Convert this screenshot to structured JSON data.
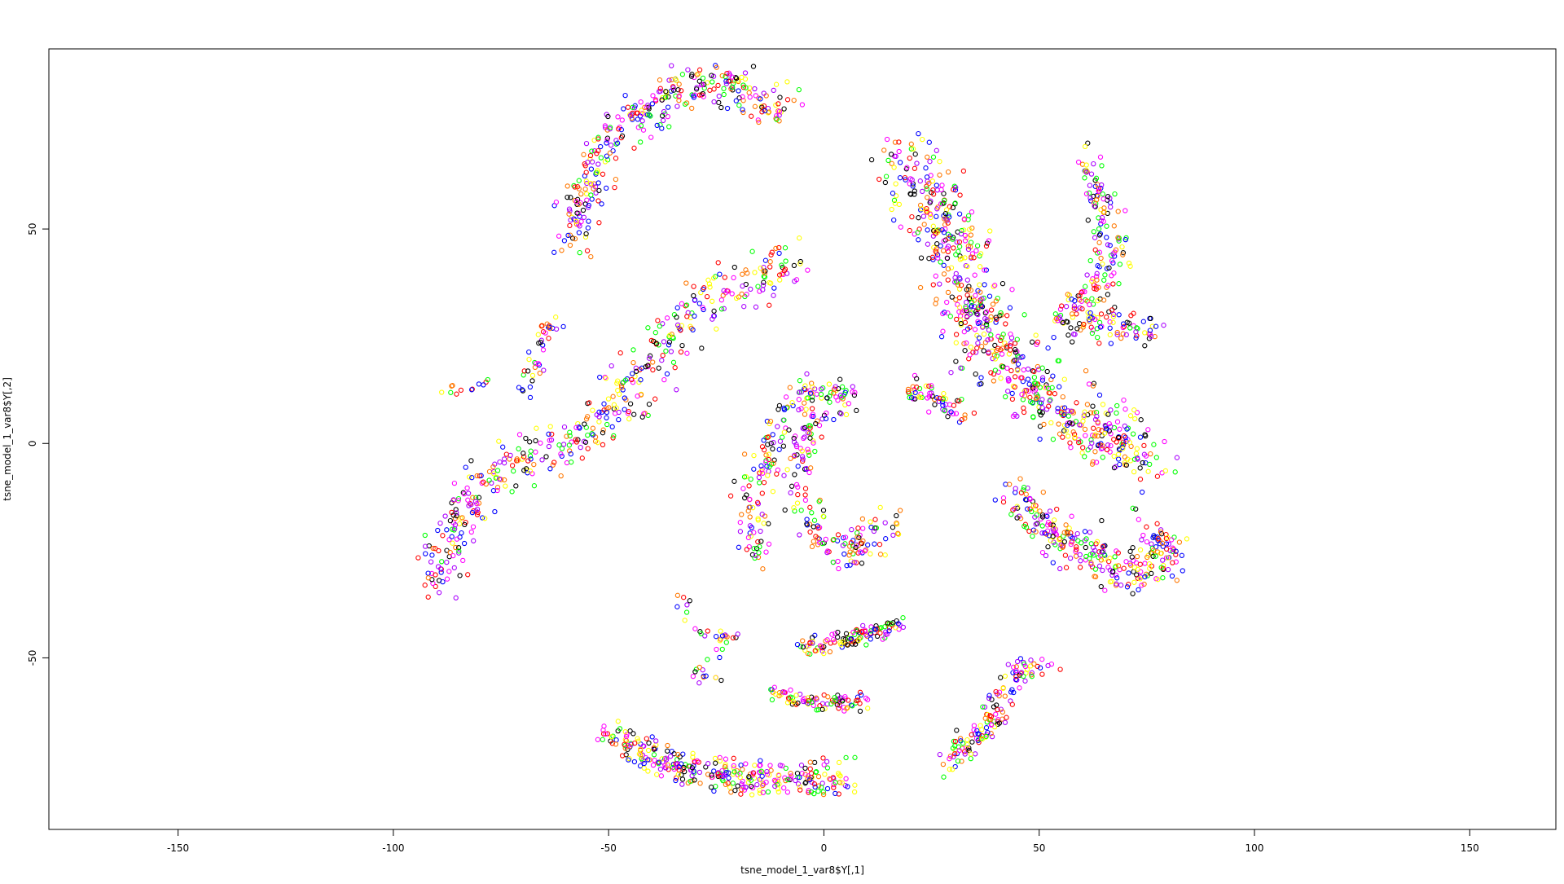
{
  "chart_data": {
    "type": "scatter",
    "title": "",
    "xlabel": "tsne_model_1_var8$Y[,1]",
    "ylabel": "tsne_model_1_var8$Y[,2]",
    "xlim": [
      -180,
      170
    ],
    "ylim": [
      -90,
      92
    ],
    "x_ticks": [
      -150,
      -100,
      -50,
      0,
      50,
      100,
      150
    ],
    "y_ticks": [
      -50,
      0,
      50
    ],
    "marker": "open-circle",
    "grid": false,
    "legend": "none",
    "colors": [
      "#ff0000",
      "#00ff00",
      "#0000ff",
      "#ff00ff",
      "#000000",
      "#ffff00",
      "#ff7700",
      "#aa00ff"
    ],
    "clusters": [
      {
        "center": [
          -40,
          70
        ],
        "path": [
          [
            -58,
            45
          ],
          [
            -57,
            56
          ],
          [
            -53,
            66
          ],
          [
            -46,
            74
          ],
          [
            -38,
            80
          ],
          [
            -29,
            84
          ],
          [
            -22,
            84
          ],
          [
            -15,
            78
          ],
          [
            -8,
            79
          ]
        ],
        "width": 7,
        "count": 330
      },
      {
        "center": [
          -50,
          10
        ],
        "path": [
          [
            -89,
            -33
          ],
          [
            -86,
            -18
          ],
          [
            -77,
            -8
          ],
          [
            -68,
            -3
          ],
          [
            -59,
            0
          ],
          [
            -51,
            5
          ],
          [
            -44,
            15
          ],
          [
            -38,
            22
          ],
          [
            -30,
            30
          ],
          [
            -20,
            37
          ],
          [
            -6,
            42
          ]
        ],
        "width": 9,
        "count": 450
      },
      {
        "center": [
          -66,
          20
        ],
        "path": [
          [
            -69,
            12
          ],
          [
            -66,
            20
          ],
          [
            -64,
            28
          ],
          [
            -61,
            26
          ]
        ],
        "width": 4,
        "count": 40
      },
      {
        "center": [
          -84,
          12
        ],
        "path": [
          [
            -88,
            12
          ],
          [
            -82,
            13
          ],
          [
            -78,
            15
          ]
        ],
        "width": 2,
        "count": 12
      },
      {
        "center": [
          6,
          -10
        ],
        "path": [
          [
            -16,
            -28
          ],
          [
            -17,
            -14
          ],
          [
            -13,
            0
          ],
          [
            -7,
            10
          ],
          [
            1,
            13
          ],
          [
            6,
            10
          ],
          [
            -4,
            4
          ],
          [
            -7,
            -10
          ],
          [
            0,
            -22
          ],
          [
            5,
            -28
          ],
          [
            10,
            -22
          ],
          [
            17,
            -17
          ]
        ],
        "width": 6,
        "count": 340
      },
      {
        "center": [
          46,
          12
        ],
        "path": [
          [
            19,
            65
          ],
          [
            25,
            55
          ],
          [
            30,
            45
          ],
          [
            34,
            35
          ],
          [
            38,
            25
          ],
          [
            43,
            18
          ],
          [
            52,
            10
          ],
          [
            60,
            5
          ],
          [
            70,
            0
          ],
          [
            75,
            -5
          ]
        ],
        "width": 12,
        "count": 700
      },
      {
        "center": [
          65,
          50
        ],
        "path": [
          [
            61,
            67
          ],
          [
            65,
            55
          ],
          [
            67,
            45
          ],
          [
            62,
            35
          ],
          [
            55,
            28
          ],
          [
            70,
            28
          ],
          [
            78,
            26
          ]
        ],
        "width": 6,
        "count": 240
      },
      {
        "center": [
          25,
          10
        ],
        "path": [
          [
            20,
            13
          ],
          [
            28,
            10
          ],
          [
            33,
            7
          ]
        ],
        "width": 4,
        "count": 60
      },
      {
        "center": [
          58,
          -22
        ],
        "path": [
          [
            45,
            -12
          ],
          [
            52,
            -20
          ],
          [
            60,
            -25
          ],
          [
            68,
            -30
          ],
          [
            75,
            -30
          ],
          [
            80,
            -25
          ],
          [
            76,
            -20
          ]
        ],
        "width": 8,
        "count": 280
      },
      {
        "center": [
          -25,
          -70
        ],
        "path": [
          [
            -50,
            -68
          ],
          [
            -44,
            -70
          ],
          [
            -38,
            -74
          ],
          [
            -30,
            -76
          ],
          [
            -20,
            -78
          ],
          [
            -10,
            -78
          ],
          [
            5,
            -78
          ]
        ],
        "width": 6,
        "count": 330
      },
      {
        "center": [
          -28,
          -45
        ],
        "path": [
          [
            -34,
            -35
          ],
          [
            -28,
            -45
          ],
          [
            -22,
            -45
          ],
          [
            -30,
            -55
          ],
          [
            -22,
            -55
          ]
        ],
        "width": 3,
        "count": 40
      },
      {
        "center": [
          5,
          -48
        ],
        "path": [
          [
            -5,
            -48
          ],
          [
            5,
            -46
          ],
          [
            18,
            -42
          ]
        ],
        "width": 3,
        "count": 110
      },
      {
        "center": [
          5,
          -60
        ],
        "path": [
          [
            -12,
            -58
          ],
          [
            0,
            -61
          ],
          [
            10,
            -60
          ]
        ],
        "width": 3,
        "count": 90
      },
      {
        "center": [
          40,
          -62
        ],
        "path": [
          [
            28,
            -75
          ],
          [
            34,
            -70
          ],
          [
            40,
            -63
          ],
          [
            45,
            -53
          ],
          [
            52,
            -52
          ]
        ],
        "width": 5,
        "count": 140
      }
    ]
  }
}
